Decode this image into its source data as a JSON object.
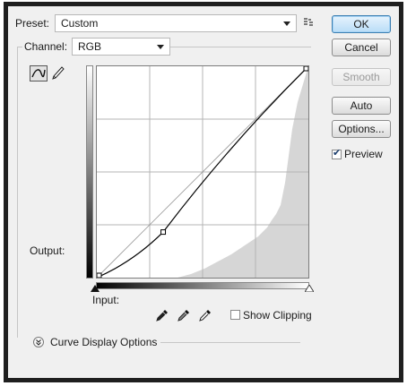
{
  "preset": {
    "label": "Preset:",
    "value": "Custom",
    "menu_icon": "list-menu-icon"
  },
  "channel": {
    "label": "Channel:",
    "value": "RGB"
  },
  "buttons": {
    "ok": "OK",
    "cancel": "Cancel",
    "smooth": "Smooth",
    "auto": "Auto",
    "options": "Options..."
  },
  "preview": {
    "label": "Preview",
    "checked": true
  },
  "graph": {
    "output_label": "Output:",
    "input_label": "Input:",
    "control_point": {
      "input": 80,
      "output": 55
    },
    "curve_icon": "curve-tool-icon",
    "pencil_icon": "pencil-tool-icon"
  },
  "eyedroppers": [
    "black-eyedropper-icon",
    "gray-eyedropper-icon",
    "white-eyedropper-icon"
  ],
  "show_clipping": {
    "label": "Show Clipping",
    "checked": false
  },
  "curve_display": {
    "label": "Curve Display Options",
    "icon": "expand-chevron-icon"
  },
  "colors": {
    "accent": "#3c7fb1",
    "histogram": "#d6d6d6",
    "curve": "#000000"
  }
}
